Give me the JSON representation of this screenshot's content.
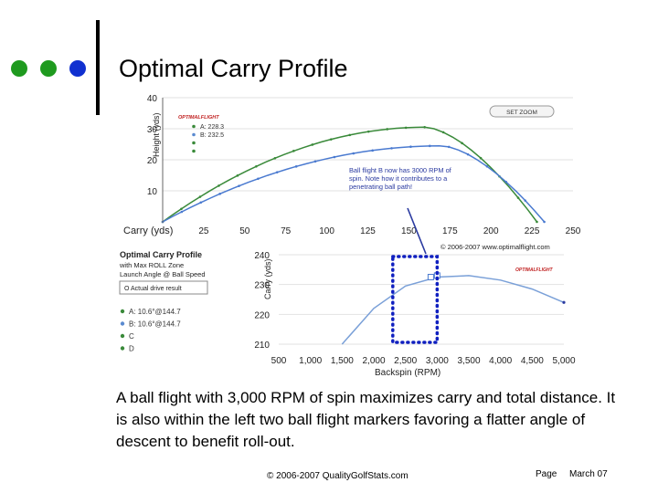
{
  "slide": {
    "title": "Optimal Carry Profile",
    "caption": "A ball flight with 3,000 RPM of spin maximizes carry and total distance.  It is also within the left two ball flight markers favoring a flatter angle of descent to benefit roll-out.",
    "footer_copyright": "© 2006-2007 QualityGolfStats.com",
    "footer_page": "Page",
    "footer_date": "March 07",
    "bullet_colors": [
      "#1f9a1f",
      "#1f9a1f",
      "#1030d0"
    ]
  },
  "chart_data": [
    {
      "type": "line",
      "title": "",
      "ylabel": "Height (yds)",
      "xlabel": "Carry (yds)",
      "xlim": [
        0,
        250
      ],
      "ylim": [
        0,
        40
      ],
      "x_ticks": [
        25,
        50,
        75,
        100,
        125,
        150,
        175,
        200,
        225,
        250
      ],
      "y_ticks": [
        10,
        20,
        30,
        40
      ],
      "logo": "OPTIMALFLIGHT",
      "button": "SET ZOOM",
      "legend": [
        {
          "label": "A: 228.3",
          "color": "#3a8a3a"
        },
        {
          "label": "B: 232.5",
          "color": "#5a8ad0"
        },
        {
          "label": "",
          "color": "#3a8a3a"
        },
        {
          "label": "",
          "color": "#3a8a3a"
        }
      ],
      "annotation": "Ball flight B now has 3000 RPM of spin.  Note how it contributes to a penetrating ball path!",
      "copyright": "© 2006-2007 www.optimalflight.com",
      "series": [
        {
          "name": "A",
          "color": "#3a8a3a",
          "peak": [
            160,
            30.5
          ],
          "land": 228
        },
        {
          "name": "B",
          "color": "#4a7ad0",
          "peak": [
            170,
            24.5
          ],
          "land": 232.5
        }
      ]
    },
    {
      "type": "line",
      "title": "",
      "panel_title": "Optimal Carry Profile",
      "panel_subtitle": "with Max ROLL Zone",
      "panel_note": "Launch Angle @ Ball Speed",
      "panel_box": "O  Actual drive result",
      "ylabel": "Carry (yds)",
      "xlabel": "Backspin (RPM)",
      "xlim": [
        500,
        5000
      ],
      "ylim": [
        210,
        240
      ],
      "x_ticks": [
        "500",
        "1,000",
        "1,500",
        "2,000",
        "2,500",
        "3,000",
        "3,500",
        "4,000",
        "4,500",
        "5,000"
      ],
      "y_ticks": [
        210,
        220,
        230,
        240
      ],
      "legend": [
        {
          "label": "A: 10.6°@144.7",
          "color": "#3a8a3a"
        },
        {
          "label": "B: 10.6°@144.7",
          "color": "#5a8ad0"
        },
        {
          "label": "C",
          "color": "#3a8a3a"
        },
        {
          "label": "D",
          "color": "#3a8a3a"
        }
      ],
      "series": [
        {
          "name": "A",
          "color": "#7aa0d8",
          "x": [
            1500,
            2000,
            2500,
            3000,
            3500,
            4000,
            4500,
            5000
          ],
          "y": [
            210,
            222,
            229.5,
            232.5,
            233,
            231.5,
            228.5,
            224
          ]
        }
      ],
      "markers": [
        {
          "label": "A",
          "x": 2900,
          "y": 232.5
        },
        {
          "label": "B",
          "x": 3000,
          "y": 233
        }
      ],
      "max_roll_zone": [
        2300,
        3000
      ]
    }
  ]
}
